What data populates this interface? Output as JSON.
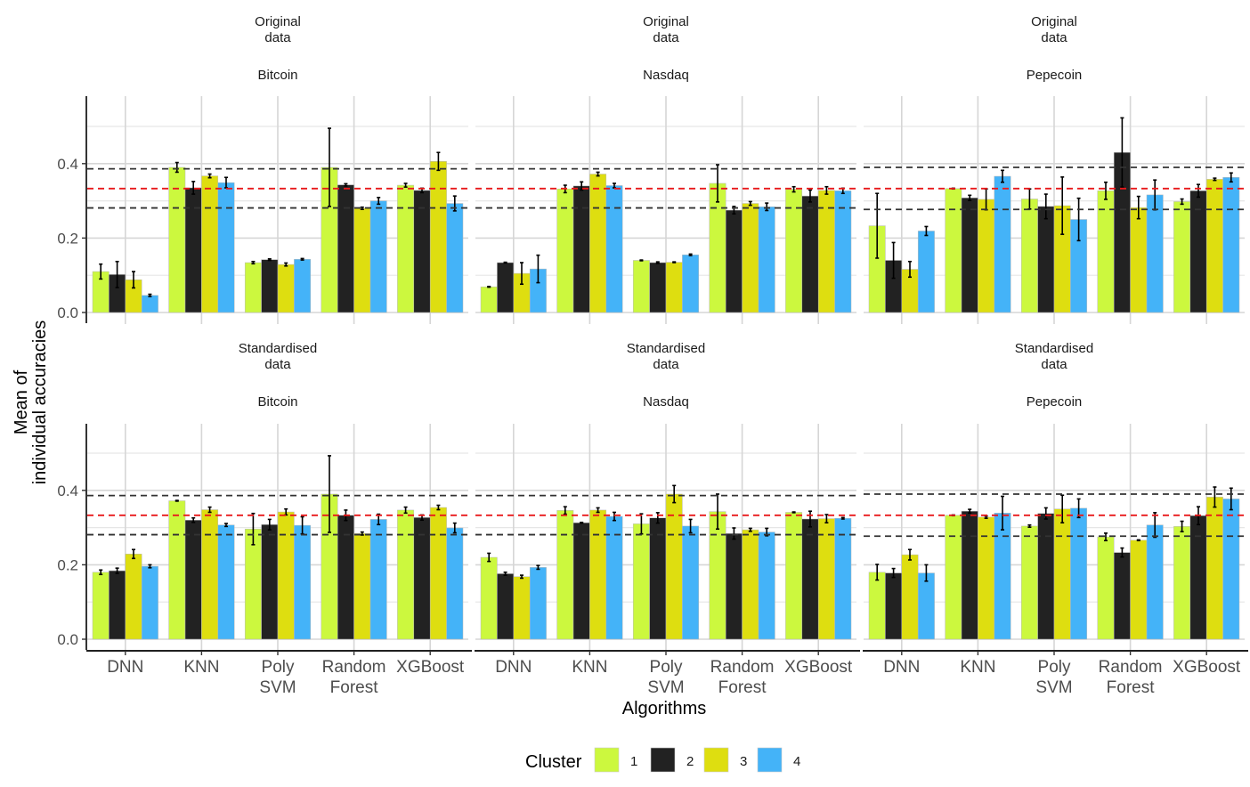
{
  "chart_data": {
    "type": "bar",
    "title": "",
    "xlabel": "Algorithms",
    "ylabel": "Mean of\nindividual accuracies",
    "ylim": [
      0,
      0.56
    ],
    "yticks": [
      0.0,
      0.2,
      0.4
    ],
    "ytick_labels": [
      "0.0",
      "0.2",
      "0.4"
    ],
    "grid": true,
    "categories": [
      "DNN",
      "KNN",
      "Poly\nSVM",
      "Random\nForest",
      "XGBoost"
    ],
    "legend": {
      "title": "Cluster",
      "position": "bottom",
      "entries": [
        {
          "name": "1",
          "color": "#ccf83e"
        },
        {
          "name": "2",
          "color": "#222222"
        },
        {
          "name": "3",
          "color": "#dede10"
        },
        {
          "name": "4",
          "color": "#44b3f8"
        }
      ]
    },
    "reference_lines_note": "dashed horizontal lines: red = mean, black = mean ± spread",
    "panels": [
      {
        "row_label": "Original\ndata",
        "col_label": "Bitcoin",
        "ref_lines": {
          "upper": 0.386,
          "middle": 0.333,
          "lower": 0.281
        },
        "series": [
          {
            "name": "1",
            "values": [
              0.11,
              0.39,
              0.134,
              0.39,
              0.342
            ],
            "err": [
              0.02,
              0.013,
              0.003,
              0.105,
              0.005
            ]
          },
          {
            "name": "2",
            "values": [
              0.102,
              0.335,
              0.142,
              0.343,
              0.328
            ],
            "err": [
              0.035,
              0.017,
              0.002,
              0.003,
              0.006
            ]
          },
          {
            "name": "3",
            "values": [
              0.088,
              0.367,
              0.129,
              0.28,
              0.406
            ],
            "err": [
              0.022,
              0.005,
              0.004,
              0.003,
              0.024
            ]
          },
          {
            "name": "4",
            "values": [
              0.046,
              0.349,
              0.143,
              0.3,
              0.293
            ],
            "err": [
              0.003,
              0.014,
              0.002,
              0.009,
              0.02
            ]
          }
        ]
      },
      {
        "row_label": "Original\ndata",
        "col_label": "Nasdaq",
        "ref_lines": {
          "upper": 0.386,
          "middle": 0.333,
          "lower": 0.281
        },
        "series": [
          {
            "name": "1",
            "values": [
              0.069,
              0.332,
              0.14,
              0.347,
              0.331
            ],
            "err": [
              0.001,
              0.01,
              0.001,
              0.05,
              0.007
            ]
          },
          {
            "name": "2",
            "values": [
              0.134,
              0.34,
              0.134,
              0.275,
              0.313
            ],
            "err": [
              0.001,
              0.011,
              0.002,
              0.01,
              0.016
            ]
          },
          {
            "name": "3",
            "values": [
              0.105,
              0.372,
              0.135,
              0.293,
              0.328
            ],
            "err": [
              0.029,
              0.005,
              0.001,
              0.005,
              0.01
            ]
          },
          {
            "name": "4",
            "values": [
              0.117,
              0.341,
              0.155,
              0.284,
              0.327
            ],
            "err": [
              0.037,
              0.006,
              0.002,
              0.01,
              0.007
            ]
          }
        ]
      },
      {
        "row_label": "Original\ndata",
        "col_label": "Pepecoin",
        "ref_lines": {
          "upper": 0.39,
          "middle": 0.333,
          "lower": 0.277
        },
        "series": [
          {
            "name": "1",
            "values": [
              0.233,
              0.333,
              0.305,
              0.327,
              0.298
            ],
            "err": [
              0.087,
              0.001,
              0.027,
              0.023,
              0.007
            ]
          },
          {
            "name": "2",
            "values": [
              0.14,
              0.308,
              0.285,
              0.43,
              0.327
            ],
            "err": [
              0.048,
              0.007,
              0.033,
              0.093,
              0.017
            ]
          },
          {
            "name": "3",
            "values": [
              0.116,
              0.304,
              0.287,
              0.282,
              0.358
            ],
            "err": [
              0.021,
              0.028,
              0.077,
              0.03,
              0.003
            ]
          },
          {
            "name": "4",
            "values": [
              0.219,
              0.366,
              0.25,
              0.316,
              0.363
            ],
            "err": [
              0.012,
              0.016,
              0.057,
              0.04,
              0.012
            ]
          }
        ]
      },
      {
        "row_label": "Standardised\ndata",
        "col_label": "Bitcoin",
        "ref_lines": {
          "upper": 0.386,
          "middle": 0.333,
          "lower": 0.281
        },
        "series": [
          {
            "name": "1",
            "values": [
              0.18,
              0.372,
              0.296,
              0.39,
              0.347
            ],
            "err": [
              0.006,
              0.001,
              0.042,
              0.103,
              0.008
            ]
          },
          {
            "name": "2",
            "values": [
              0.184,
              0.32,
              0.308,
              0.333,
              0.327
            ],
            "err": [
              0.007,
              0.006,
              0.014,
              0.014,
              0.007
            ]
          },
          {
            "name": "3",
            "values": [
              0.229,
              0.348,
              0.342,
              0.284,
              0.354
            ],
            "err": [
              0.012,
              0.007,
              0.008,
              0.004,
              0.006
            ]
          },
          {
            "name": "4",
            "values": [
              0.196,
              0.307,
              0.306,
              0.322,
              0.299
            ],
            "err": [
              0.004,
              0.004,
              0.023,
              0.014,
              0.013
            ]
          }
        ]
      },
      {
        "row_label": "Standardised\ndata",
        "col_label": "Nasdaq",
        "ref_lines": {
          "upper": 0.386,
          "middle": 0.333,
          "lower": 0.281
        },
        "series": [
          {
            "name": "1",
            "values": [
              0.22,
              0.346,
              0.31,
              0.343,
              0.341
            ],
            "err": [
              0.011,
              0.01,
              0.027,
              0.047,
              0.001
            ]
          },
          {
            "name": "2",
            "values": [
              0.176,
              0.313,
              0.326,
              0.284,
              0.323
            ],
            "err": [
              0.004,
              0.001,
              0.014,
              0.015,
              0.021
            ]
          },
          {
            "name": "3",
            "values": [
              0.168,
              0.347,
              0.39,
              0.294,
              0.324
            ],
            "err": [
              0.004,
              0.006,
              0.023,
              0.004,
              0.011
            ]
          },
          {
            "name": "4",
            "values": [
              0.193,
              0.33,
              0.304,
              0.288,
              0.325
            ],
            "err": [
              0.005,
              0.011,
              0.018,
              0.01,
              0.002
            ]
          }
        ]
      },
      {
        "row_label": "Standardised\ndata",
        "col_label": "Pepecoin",
        "ref_lines": {
          "upper": 0.39,
          "middle": 0.333,
          "lower": 0.277
        },
        "series": [
          {
            "name": "1",
            "values": [
              0.18,
              0.333,
              0.304,
              0.275,
              0.303
            ],
            "err": [
              0.021,
              0.001,
              0.003,
              0.01,
              0.014
            ]
          },
          {
            "name": "2",
            "values": [
              0.178,
              0.344,
              0.338,
              0.233,
              0.332
            ],
            "err": [
              0.012,
              0.005,
              0.015,
              0.012,
              0.024
            ]
          },
          {
            "name": "3",
            "values": [
              0.227,
              0.328,
              0.35,
              0.266,
              0.382
            ],
            "err": [
              0.014,
              0.003,
              0.037,
              0.001,
              0.027
            ]
          },
          {
            "name": "4",
            "values": [
              0.178,
              0.339,
              0.352,
              0.307,
              0.377
            ],
            "err": [
              0.022,
              0.045,
              0.025,
              0.033,
              0.029
            ]
          }
        ]
      }
    ]
  }
}
